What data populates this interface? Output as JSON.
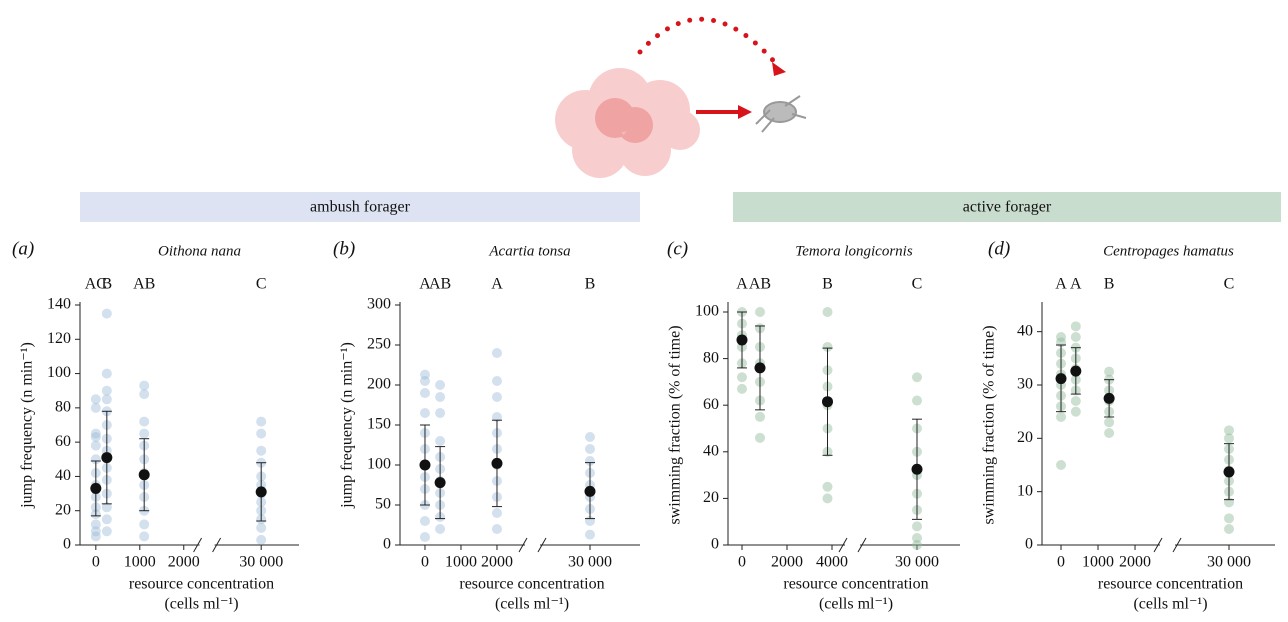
{
  "banners": [
    "ambush forager",
    "active forager"
  ],
  "chart_data": [
    {
      "type": "strip",
      "panel": "(a)",
      "title": "Oithona nana",
      "ylabel": "jump frequency (n min⁻¹)",
      "xlabel": "resource concentration",
      "xunit": "(cells ml⁻¹)",
      "color": "#9dbad8",
      "xlim": [
        -360,
        30860
      ],
      "xbreak": [
        2360,
        28940
      ],
      "ylim": [
        0,
        140
      ],
      "xticks": [
        0,
        1000,
        2000,
        {
          "value": 30000,
          "label": "30 000"
        }
      ],
      "yticks": [
        0,
        20,
        40,
        60,
        80,
        100,
        120,
        140
      ],
      "groups": [
        {
          "x": 0,
          "letter": "AC",
          "mean": 33,
          "lower": 17,
          "upper": 49,
          "points": [
            5,
            8,
            12,
            18,
            22,
            28,
            35,
            42,
            50,
            58,
            63,
            65,
            80,
            85
          ]
        },
        {
          "x": 250,
          "letter": "B",
          "mean": 51,
          "lower": 24,
          "upper": 78,
          "points": [
            8,
            15,
            22,
            30,
            38,
            45,
            55,
            62,
            70,
            78,
            85,
            90,
            100,
            135
          ]
        },
        {
          "x": 1100,
          "letter": "AB",
          "mean": 41,
          "lower": 20,
          "upper": 62,
          "points": [
            5,
            12,
            20,
            28,
            35,
            42,
            50,
            58,
            65,
            72,
            88,
            93
          ]
        },
        {
          "x": 30000,
          "letter": "C",
          "mean": 31,
          "lower": 14,
          "upper": 48,
          "points": [
            3,
            10,
            15,
            20,
            25,
            30,
            35,
            40,
            48,
            55,
            65,
            72
          ]
        }
      ]
    },
    {
      "type": "strip",
      "panel": "(b)",
      "title": "Acartia tonsa",
      "ylabel": "jump frequency (n min⁻¹)",
      "xlabel": "resource concentration",
      "xunit": "(cells ml⁻¹)",
      "color": "#9dbad8",
      "xlim": [
        -694,
        31389
      ],
      "xbreak": [
        2778,
        28611
      ],
      "ylim": [
        0,
        300
      ],
      "xticks": [
        0,
        1000,
        2000,
        {
          "value": 30000,
          "label": "30 000"
        }
      ],
      "yticks": [
        0,
        50,
        100,
        150,
        200,
        250,
        300
      ],
      "groups": [
        {
          "x": 0,
          "letter": "A",
          "mean": 100,
          "lower": 50,
          "upper": 150,
          "points": [
            10,
            30,
            50,
            70,
            85,
            100,
            120,
            140,
            165,
            190,
            205,
            213
          ]
        },
        {
          "x": 420,
          "letter": "AB",
          "mean": 78,
          "lower": 33,
          "upper": 123,
          "points": [
            20,
            35,
            50,
            65,
            80,
            95,
            110,
            130,
            165,
            185,
            200
          ]
        },
        {
          "x": 2000,
          "letter": "A",
          "mean": 102,
          "lower": 48,
          "upper": 156,
          "points": [
            20,
            40,
            60,
            80,
            100,
            120,
            140,
            160,
            185,
            205,
            240
          ]
        },
        {
          "x": 30000,
          "letter": "B",
          "mean": 67,
          "lower": 33,
          "upper": 103,
          "points": [
            13,
            30,
            45,
            60,
            75,
            90,
            105,
            120,
            135
          ]
        }
      ]
    },
    {
      "type": "strip",
      "panel": "(c)",
      "title": "Temora longicornis",
      "ylabel": "swimming fraction (% of time)",
      "xlabel": "resource concentration",
      "xunit": "(cells ml⁻¹)",
      "color": "#8fb89a",
      "xlim": [
        -622,
        31911
      ],
      "xbreak": [
        4578,
        27467
      ],
      "ylim": [
        0,
        103
      ],
      "xticks": [
        0,
        2000,
        4000,
        {
          "value": 30000,
          "label": "30 000"
        }
      ],
      "yticks": [
        0,
        20,
        40,
        60,
        80,
        100
      ],
      "groups": [
        {
          "x": 0,
          "letter": "A",
          "mean": 88,
          "lower": 76,
          "upper": 100,
          "points": [
            67,
            72,
            78,
            85,
            90,
            95,
            100
          ]
        },
        {
          "x": 800,
          "letter": "AB",
          "mean": 76,
          "lower": 58,
          "upper": 94,
          "points": [
            46,
            55,
            62,
            70,
            78,
            85,
            93,
            100
          ]
        },
        {
          "x": 3800,
          "letter": "B",
          "mean": 61.5,
          "lower": 38.5,
          "upper": 84.5,
          "points": [
            20,
            25,
            40,
            50,
            60,
            68,
            75,
            85,
            100
          ]
        },
        {
          "x": 30000,
          "letter": "C",
          "mean": 32.5,
          "lower": 11,
          "upper": 54,
          "points": [
            0,
            3,
            8,
            15,
            22,
            30,
            40,
            50,
            62,
            72
          ]
        }
      ]
    },
    {
      "type": "strip",
      "panel": "(d)",
      "title": "Centropages hamatus",
      "ylabel": "swimming fraction (% of time)",
      "xlabel": "resource concentration",
      "xunit": "(cells ml⁻¹)",
      "color": "#8fb89a",
      "xlim": [
        -514,
        31243
      ],
      "xbreak": [
        2676,
        28541
      ],
      "ylim": [
        0,
        45
      ],
      "xticks": [
        0,
        1000,
        2000,
        {
          "value": 30000,
          "label": "30 000"
        }
      ],
      "yticks": [
        0,
        10,
        20,
        30,
        40
      ],
      "groups": [
        {
          "x": 0,
          "letter": "A",
          "mean": 31.2,
          "lower": 25,
          "upper": 37.5,
          "points": [
            15,
            24,
            26,
            28,
            30,
            32,
            34,
            36,
            38,
            39
          ]
        },
        {
          "x": 400,
          "letter": "A",
          "mean": 32.6,
          "lower": 28.3,
          "upper": 37,
          "points": [
            25,
            27,
            29,
            31,
            33,
            35,
            37,
            39,
            41
          ]
        },
        {
          "x": 1300,
          "letter": "B",
          "mean": 27.5,
          "lower": 24,
          "upper": 31,
          "points": [
            21,
            23,
            25,
            27,
            29,
            31,
            32.5
          ]
        },
        {
          "x": 30000,
          "letter": "C",
          "mean": 13.7,
          "lower": 8.5,
          "upper": 19,
          "points": [
            3,
            5,
            8,
            10,
            12,
            14,
            16,
            18,
            20,
            21.5
          ]
        }
      ]
    }
  ]
}
